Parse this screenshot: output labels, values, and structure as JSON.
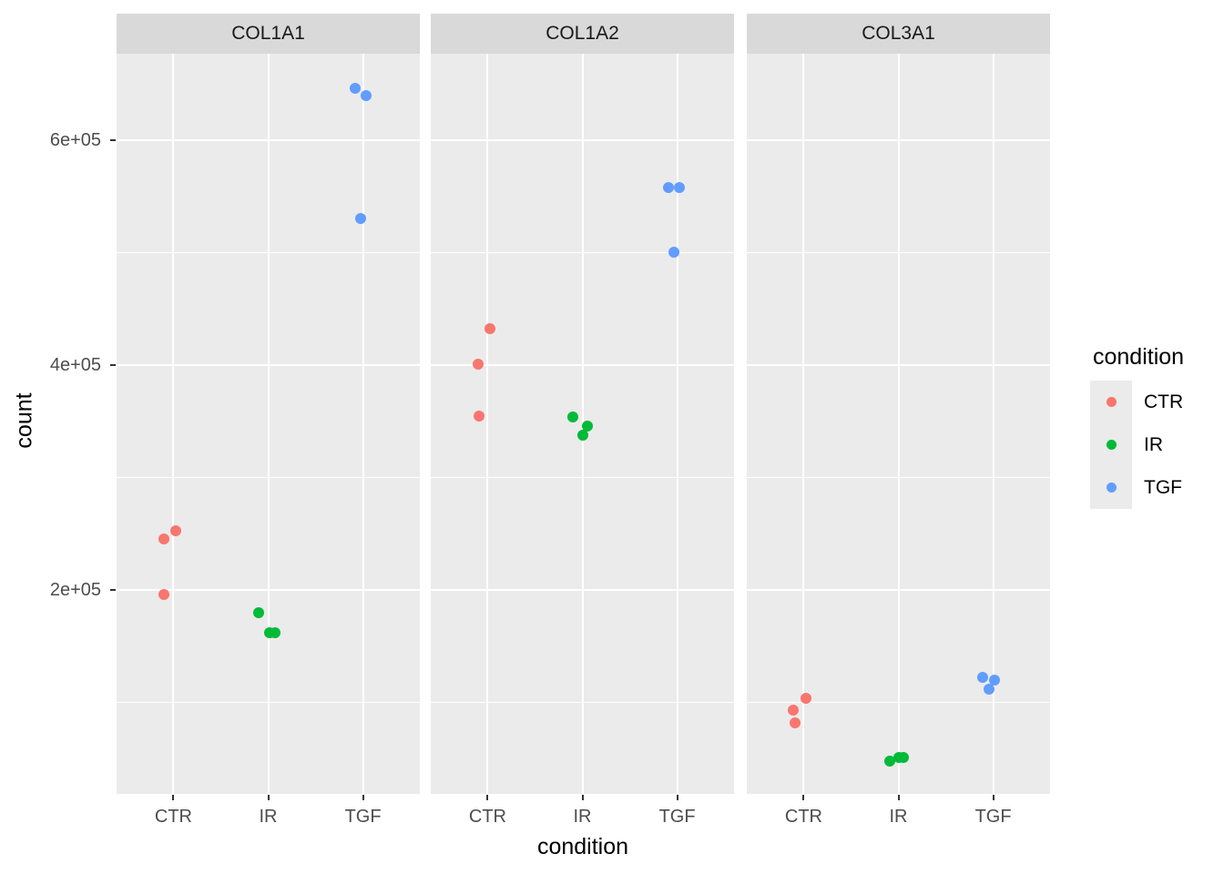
{
  "chart_data": {
    "type": "scatter",
    "title": "",
    "x_axis_label": "condition",
    "y_axis_label": "count",
    "x_categories": [
      "CTR",
      "IR",
      "TGF"
    ],
    "y_ticks": [
      {
        "value": 200000,
        "label": "2e+05"
      },
      {
        "value": 400000,
        "label": "4e+05"
      },
      {
        "value": 600000,
        "label": "6e+05"
      }
    ],
    "y_minor_gridlines": [
      100000,
      300000,
      500000
    ],
    "ylim": [
      18600,
      676900
    ],
    "grid": "major-and-minor-horizontal-white",
    "legend_position": "right",
    "facets": [
      {
        "label": "COL1A1",
        "points": [
          {
            "condition": "CTR",
            "count": 253000,
            "dx": 3
          },
          {
            "condition": "CTR",
            "count": 245000,
            "dx": -10
          },
          {
            "condition": "CTR",
            "count": 196000,
            "dx": -10
          },
          {
            "condition": "IR",
            "count": 180000,
            "dx": -11
          },
          {
            "condition": "IR",
            "count": 162000,
            "dx": 1
          },
          {
            "condition": "IR",
            "count": 162000,
            "dx": 7
          },
          {
            "condition": "TGF",
            "count": 646000,
            "dx": -9
          },
          {
            "condition": "TGF",
            "count": 640000,
            "dx": 3
          },
          {
            "condition": "TGF",
            "count": 530000,
            "dx": -3
          }
        ]
      },
      {
        "label": "COL1A2",
        "points": [
          {
            "condition": "CTR",
            "count": 432000,
            "dx": 3
          },
          {
            "condition": "CTR",
            "count": 401000,
            "dx": -10
          },
          {
            "condition": "CTR",
            "count": 355000,
            "dx": -9
          },
          {
            "condition": "IR",
            "count": 354000,
            "dx": -11
          },
          {
            "condition": "IR",
            "count": 346000,
            "dx": 5
          },
          {
            "condition": "IR",
            "count": 338000,
            "dx": 0
          },
          {
            "condition": "TGF",
            "count": 558000,
            "dx": -10
          },
          {
            "condition": "TGF",
            "count": 558000,
            "dx": 2
          },
          {
            "condition": "TGF",
            "count": 500000,
            "dx": -4
          }
        ]
      },
      {
        "label": "COL3A1",
        "points": [
          {
            "condition": "CTR",
            "count": 104000,
            "dx": 3
          },
          {
            "condition": "CTR",
            "count": 93000,
            "dx": -11
          },
          {
            "condition": "CTR",
            "count": 82000,
            "dx": -9
          },
          {
            "condition": "IR",
            "count": 48000,
            "dx": -10
          },
          {
            "condition": "IR",
            "count": 51000,
            "dx": 0
          },
          {
            "condition": "IR",
            "count": 51000,
            "dx": 5
          },
          {
            "condition": "TGF",
            "count": 122000,
            "dx": -12
          },
          {
            "condition": "TGF",
            "count": 120000,
            "dx": 1
          },
          {
            "condition": "TGF",
            "count": 112000,
            "dx": -5
          }
        ]
      }
    ],
    "legend": {
      "title": "condition",
      "entries": [
        {
          "label": "CTR",
          "color": "#F8766D"
        },
        {
          "label": "IR",
          "color": "#00BA38"
        },
        {
          "label": "TGF",
          "color": "#619CFF"
        }
      ]
    },
    "colors": {
      "panel_bg": "#EBEBEB",
      "strip_bg": "#D9D9D9",
      "gridline": "#FFFFFF",
      "axis_text": "#4D4D4D",
      "tick_mark": "#333333",
      "legend_key_bg": "#EBEBEB"
    }
  }
}
